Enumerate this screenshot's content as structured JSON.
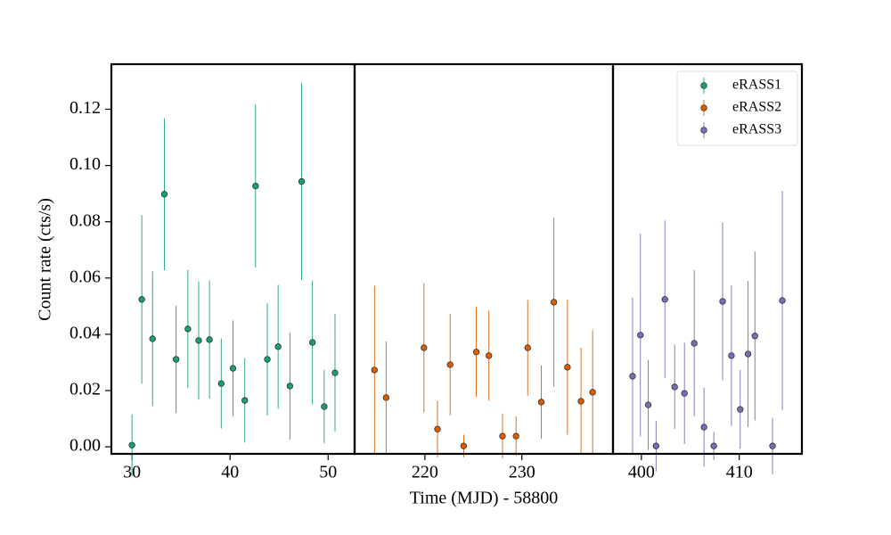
{
  "chart_data": {
    "type": "errorbar",
    "xlabel": "Time (MJD) - 58800",
    "ylabel": "Count rate (cts/s)",
    "ylim": [
      -0.0025,
      0.136
    ],
    "yticks": [
      {
        "value": 0,
        "label": "0.00"
      },
      {
        "value": 0.02,
        "label": "0.02"
      },
      {
        "value": 0.04,
        "label": "0.04"
      },
      {
        "value": 0.06,
        "label": "0.06"
      },
      {
        "value": 0.08,
        "label": "0.08"
      },
      {
        "value": 0.1,
        "label": "0.10"
      },
      {
        "value": 0.12,
        "label": "0.12"
      }
    ],
    "legend": "upper right",
    "panels": [
      {
        "xlim": [
          27.9,
          52.7
        ],
        "xticks": [
          30,
          40,
          50
        ],
        "series": [
          {
            "name": "eRASS1",
            "color": "#1b9e77",
            "x": [
              30.0,
              31.0,
              32.1,
              33.3,
              34.5,
              35.7,
              36.8,
              37.9,
              39.1,
              40.3,
              41.5,
              42.6,
              43.8,
              44.9,
              46.1,
              47.3,
              48.4,
              49.6,
              50.7
            ],
            "values": [
              0.0006,
              0.0524,
              0.0384,
              0.0898,
              0.0311,
              0.0419,
              0.0378,
              0.0381,
              0.0225,
              0.0279,
              0.0165,
              0.0927,
              0.0311,
              0.0356,
              0.0216,
              0.0943,
              0.0371,
              0.0143,
              0.0263
            ],
            "errors": [
              0.011,
              0.03,
              0.024,
              0.027,
              0.019,
              0.021,
              0.021,
              0.021,
              0.016,
              0.017,
              0.015,
              0.029,
              0.02,
              0.022,
              0.019,
              0.035,
              0.022,
              0.013,
              0.021
            ]
          }
        ]
      },
      {
        "xlim": [
          212.75,
          239.4
        ],
        "xticks": [
          220,
          230
        ],
        "series": [
          {
            "name": "eRASS2",
            "color": "#d95f02",
            "x": [
              214.8,
              216.0,
              219.9,
              221.3,
              222.6,
              224.0,
              225.3,
              226.6,
              228.0,
              229.4,
              230.6,
              232.0,
              233.3,
              234.7,
              236.1,
              237.3
            ],
            "values": [
              0.0273,
              0.0175,
              0.0352,
              0.0063,
              0.0292,
              0.0003,
              0.0337,
              0.0324,
              0.0038,
              0.0038,
              0.0352,
              0.0159,
              0.0514,
              0.0283,
              0.0162,
              0.0194
            ],
            "errors": [
              0.03,
              0.02,
              0.023,
              0.01,
              0.018,
              0.004,
              0.016,
              0.016,
              0.008,
              0.007,
              0.017,
              0.013,
              0.03,
              0.024,
              0.019,
              0.022
            ]
          }
        ]
      },
      {
        "xlim": [
          397.1,
          416.4
        ],
        "xticks": [
          400,
          410
        ],
        "series": [
          {
            "name": "eRASS3",
            "color": "#7570b3",
            "x": [
              399.1,
              399.9,
              400.7,
              401.5,
              402.4,
              403.4,
              404.4,
              405.4,
              406.4,
              407.4,
              408.3,
              409.2,
              410.1,
              410.9,
              411.6,
              413.4,
              414.4
            ],
            "values": [
              0.0251,
              0.0397,
              0.0149,
              0.0003,
              0.0524,
              0.0213,
              0.019,
              0.0368,
              0.007,
              0.0003,
              0.0517,
              0.0324,
              0.0133,
              0.033,
              0.0394,
              0.0003,
              0.052
            ],
            "errors": [
              0.028,
              0.036,
              0.016,
              0.009,
              0.028,
              0.015,
              0.018,
              0.026,
              0.014,
              0.005,
              0.028,
              0.025,
              0.014,
              0.026,
              0.03,
              0.01,
              0.039
            ]
          }
        ]
      }
    ]
  }
}
